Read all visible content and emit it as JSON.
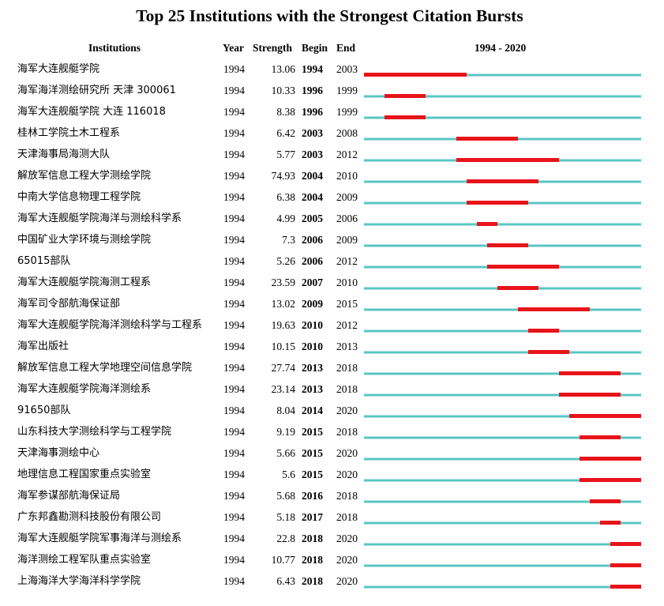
{
  "title": "Top 25 Institutions with the Strongest Citation Bursts",
  "headers": {
    "institutions": "Institutions",
    "year": "Year",
    "strength": "Strength",
    "begin": "Begin",
    "end": "End",
    "range": "1994 - 2020"
  },
  "colors": {
    "timeline": "#5bc5c3",
    "burst": "#e8141b"
  },
  "chart_data": {
    "type": "table",
    "title": "Top 25 Institutions with the Strongest Citation Bursts",
    "range_start": 1994,
    "range_end": 2020,
    "rows": [
      {
        "institution": "海军大连舰艇学院",
        "year": "1994",
        "strength": "13.06",
        "begin": "1994",
        "end": "2003"
      },
      {
        "institution": "海军海洋测绘研究所 天津 300061",
        "year": "1994",
        "strength": "10.33",
        "begin": "1996",
        "end": "1999"
      },
      {
        "institution": "海军大连舰艇学院 大连 116018",
        "year": "1994",
        "strength": "8.38",
        "begin": "1996",
        "end": "1999"
      },
      {
        "institution": "桂林工学院土木工程系",
        "year": "1994",
        "strength": "6.42",
        "begin": "2003",
        "end": "2008"
      },
      {
        "institution": "天津海事局海测大队",
        "year": "1994",
        "strength": "5.77",
        "begin": "2003",
        "end": "2012"
      },
      {
        "institution": "解放军信息工程大学测绘学院",
        "year": "1994",
        "strength": "74.93",
        "begin": "2004",
        "end": "2010"
      },
      {
        "institution": "中南大学信息物理工程学院",
        "year": "1994",
        "strength": "6.38",
        "begin": "2004",
        "end": "2009"
      },
      {
        "institution": "海军大连舰艇学院海洋与测绘科学系",
        "year": "1994",
        "strength": "4.99",
        "begin": "2005",
        "end": "2006"
      },
      {
        "institution": "中国矿业大学环境与测绘学院",
        "year": "1994",
        "strength": "7.3",
        "begin": "2006",
        "end": "2009"
      },
      {
        "institution": "65015部队",
        "year": "1994",
        "strength": "5.26",
        "begin": "2006",
        "end": "2012"
      },
      {
        "institution": "海军大连舰艇学院海测工程系",
        "year": "1994",
        "strength": "23.59",
        "begin": "2007",
        "end": "2010"
      },
      {
        "institution": "海军司令部航海保证部",
        "year": "1994",
        "strength": "13.02",
        "begin": "2009",
        "end": "2015"
      },
      {
        "institution": "海军大连舰艇学院海洋测绘科学与工程系",
        "year": "1994",
        "strength": "19.63",
        "begin": "2010",
        "end": "2012"
      },
      {
        "institution": "海军出版社",
        "year": "1994",
        "strength": "10.15",
        "begin": "2010",
        "end": "2013"
      },
      {
        "institution": "解放军信息工程大学地理空间信息学院",
        "year": "1994",
        "strength": "27.74",
        "begin": "2013",
        "end": "2018"
      },
      {
        "institution": "海军大连舰艇学院海洋测绘系",
        "year": "1994",
        "strength": "23.14",
        "begin": "2013",
        "end": "2018"
      },
      {
        "institution": "91650部队",
        "year": "1994",
        "strength": "8.04",
        "begin": "2014",
        "end": "2020"
      },
      {
        "institution": "山东科技大学测绘科学与工程学院",
        "year": "1994",
        "strength": "9.19",
        "begin": "2015",
        "end": "2018"
      },
      {
        "institution": "天津海事测绘中心",
        "year": "1994",
        "strength": "5.66",
        "begin": "2015",
        "end": "2020"
      },
      {
        "institution": "地理信息工程国家重点实验室",
        "year": "1994",
        "strength": "5.6",
        "begin": "2015",
        "end": "2020"
      },
      {
        "institution": "海军参谋部航海保证局",
        "year": "1994",
        "strength": "5.68",
        "begin": "2016",
        "end": "2018"
      },
      {
        "institution": "广东邦鑫勘测科技股份有限公司",
        "year": "1994",
        "strength": "5.18",
        "begin": "2017",
        "end": "2018"
      },
      {
        "institution": "海军大连舰艇学院军事海洋与测绘系",
        "year": "1994",
        "strength": "22.8",
        "begin": "2018",
        "end": "2020"
      },
      {
        "institution": "海洋测绘工程军队重点实验室",
        "year": "1994",
        "strength": "10.77",
        "begin": "2018",
        "end": "2020"
      },
      {
        "institution": "上海海洋大学海洋科学学院",
        "year": "1994",
        "strength": "6.43",
        "begin": "2018",
        "end": "2020"
      }
    ]
  }
}
